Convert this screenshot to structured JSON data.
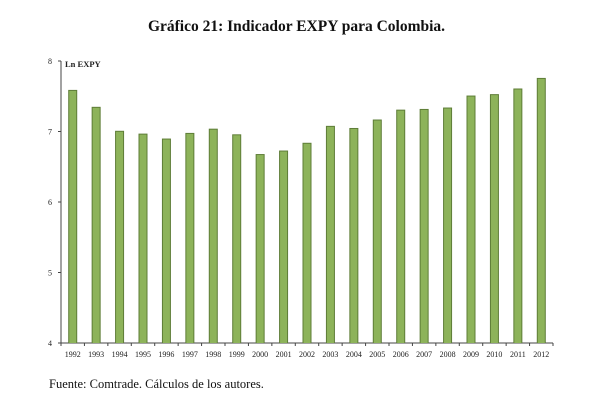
{
  "title": "Gráfico 21: Indicador EXPY para Colombia.",
  "source": "Fuente: Comtrade. Cálculos de los autores.",
  "chart_data": {
    "type": "bar",
    "title": "Gráfico 21: Indicador EXPY para Colombia.",
    "ylabel": "Ln EXPY",
    "xlabel": "",
    "ylim": [
      4,
      8
    ],
    "yticks": [
      4,
      5,
      6,
      7,
      8
    ],
    "categories": [
      "1992",
      "1993",
      "1994",
      "1995",
      "1996",
      "1997",
      "1998",
      "1999",
      "2000",
      "2001",
      "2002",
      "2003",
      "2004",
      "2005",
      "2006",
      "2007",
      "2008",
      "2009",
      "2010",
      "2011",
      "2012"
    ],
    "values": [
      7.59,
      7.35,
      7.01,
      6.97,
      6.9,
      6.98,
      7.04,
      6.96,
      6.68,
      6.73,
      6.84,
      7.08,
      7.05,
      7.17,
      7.31,
      7.32,
      7.34,
      7.51,
      7.53,
      7.61,
      7.76
    ],
    "bar_color": "#8db35a",
    "bar_shadow_color": "#5e7d37",
    "grid": false,
    "legend": "none"
  }
}
